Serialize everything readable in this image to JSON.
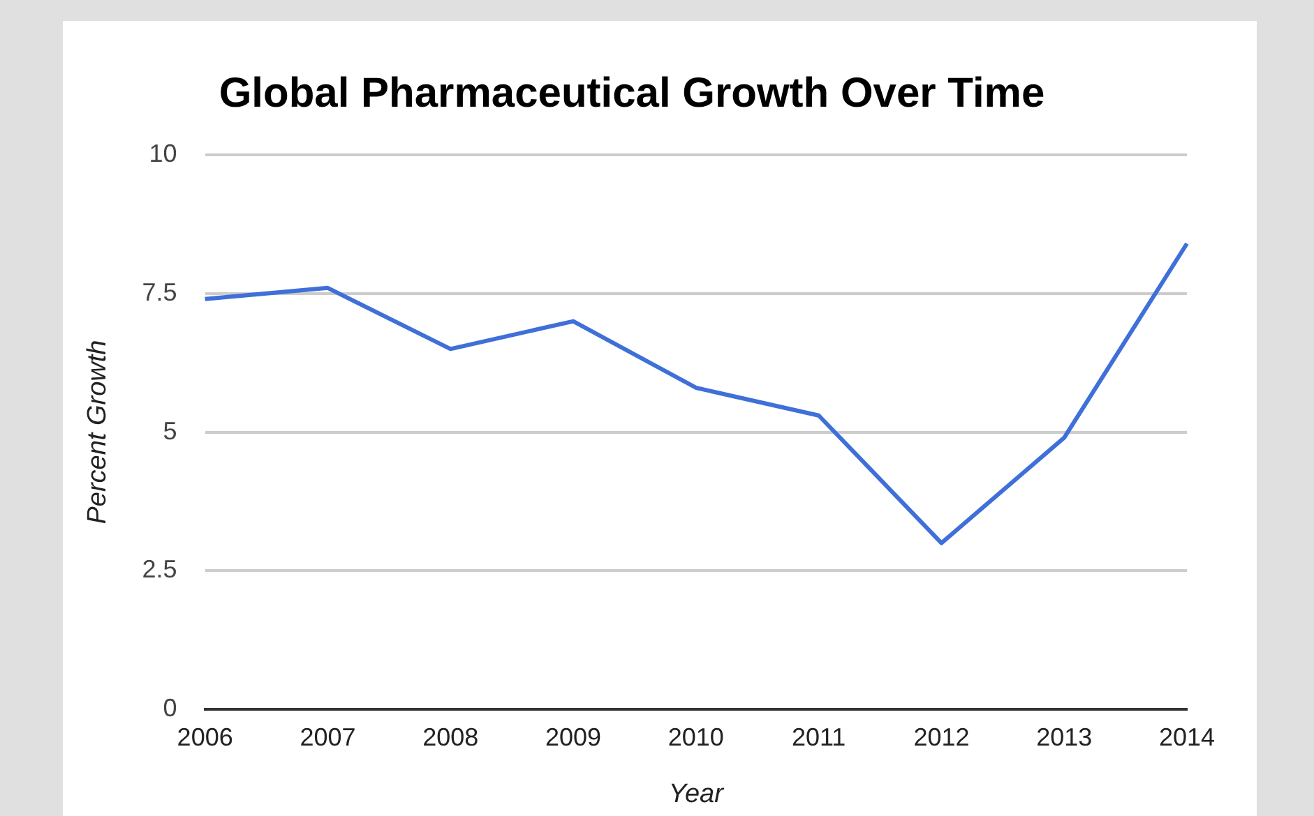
{
  "chart_data": {
    "type": "line",
    "title": "Global Pharmaceutical Growth Over Time",
    "xlabel": "Year",
    "ylabel": "Percent Growth",
    "categories": [
      "2006",
      "2007",
      "2008",
      "2009",
      "2010",
      "2011",
      "2012",
      "2013",
      "2014"
    ],
    "series": [
      {
        "color": "#3f6fd8",
        "values": [
          7.4,
          7.6,
          6.5,
          7.0,
          5.8,
          5.3,
          3.0,
          4.9,
          8.4
        ]
      }
    ],
    "ylim": [
      0,
      10
    ],
    "yticks": [
      0,
      2.5,
      5,
      7.5,
      10
    ],
    "grid": "y",
    "legend": false,
    "marker": "none",
    "line_style": "solid"
  }
}
